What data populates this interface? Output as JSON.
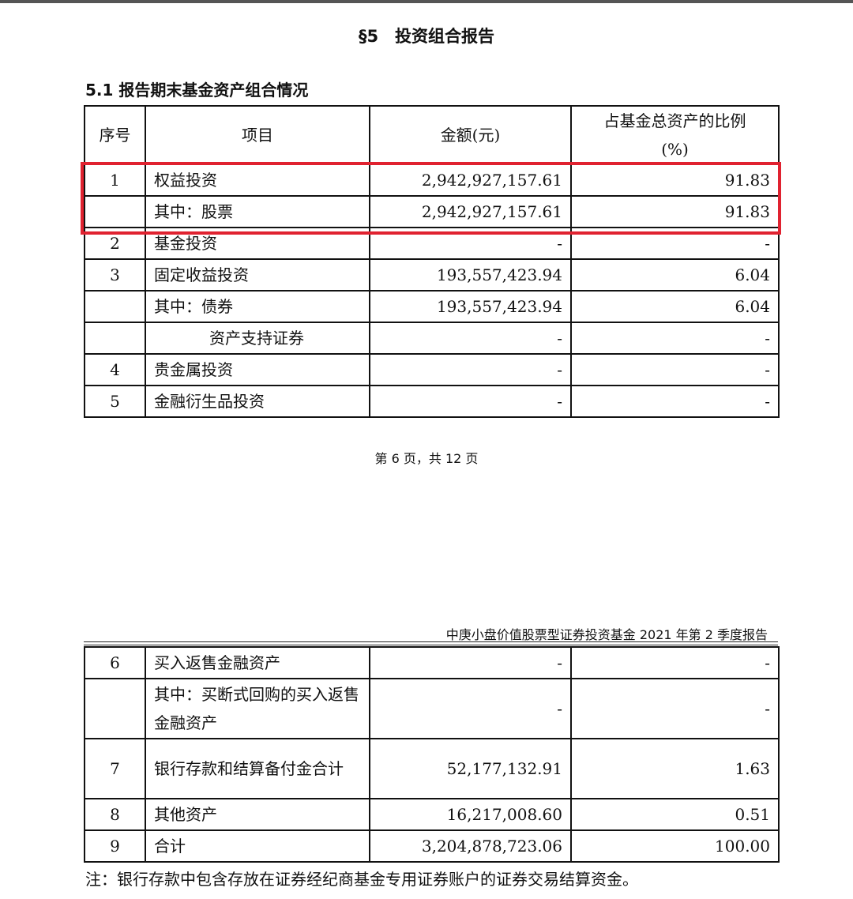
{
  "section_title": "§5　投资组合报告",
  "subsection_title": "5.1 报告期末基金资产组合情况",
  "columns": [
    "序号",
    "项目",
    "金额(元)",
    "占基金总资产的比例(%)"
  ],
  "rows_page1": [
    {
      "no": "1",
      "item": "权益投资",
      "amount": "2,942,927,157.61",
      "pct": "91.83",
      "highlighted": true
    },
    {
      "no": "",
      "item": "其中：股票",
      "amount": "2,942,927,157.61",
      "pct": "91.83",
      "highlighted": true
    },
    {
      "no": "2",
      "item": "基金投资",
      "amount": "-",
      "pct": "-"
    },
    {
      "no": "3",
      "item": "固定收益投资",
      "amount": "193,557,423.94",
      "pct": "6.04"
    },
    {
      "no": "",
      "item": "其中：债券",
      "amount": "193,557,423.94",
      "pct": "6.04"
    },
    {
      "no": "",
      "item": "资产支持证券",
      "amount": "-",
      "pct": "-"
    },
    {
      "no": "4",
      "item": "贵金属投资",
      "amount": "-",
      "pct": "-"
    },
    {
      "no": "5",
      "item": "金融衍生品投资",
      "amount": "-",
      "pct": "-"
    }
  ],
  "page_number": "第 6 页，共 12 页",
  "running_header": "中庚小盘价值股票型证券投资基金 2021 年第 2 季度报告",
  "rows_page2": [
    {
      "no": "6",
      "item": "买入返售金融资产",
      "amount": "-",
      "pct": "-"
    },
    {
      "no": "",
      "item": "其中：买断式回购的买入返售金融资产",
      "amount": "-",
      "pct": "-"
    },
    {
      "no": "7",
      "item": "银行存款和结算备付金合计",
      "amount": "52,177,132.91",
      "pct": "1.63"
    },
    {
      "no": "8",
      "item": "其他资产",
      "amount": "16,217,008.60",
      "pct": "0.51"
    },
    {
      "no": "9",
      "item": "合计",
      "amount": "3,204,878,723.06",
      "pct": "100.00"
    }
  ],
  "note": "注：银行存款中包含存放在证券经纪商基金专用证券账户的证券交易结算资金。",
  "highlight_color": "#e02230"
}
